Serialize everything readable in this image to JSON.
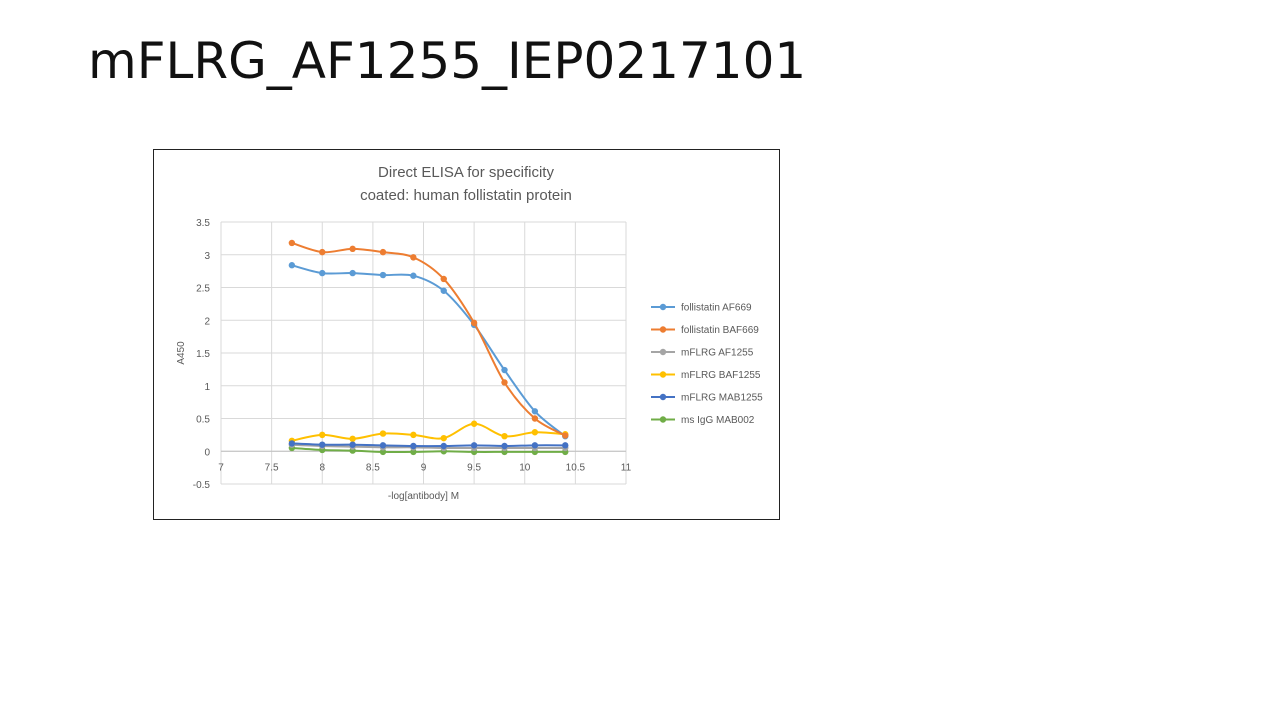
{
  "slide": {
    "title": "mFLRG_AF1255_IEP0217101"
  },
  "chart_data": {
    "type": "line",
    "title": "Direct ELISA for specificity",
    "subtitle": "coated: human follistatin protein",
    "xlabel": "-log[antibody] M",
    "ylabel": "A450",
    "xlim": [
      7,
      11
    ],
    "ylim": [
      -0.5,
      3.5
    ],
    "xticks": [
      7,
      7.5,
      8,
      8.5,
      9,
      9.5,
      10,
      10.5,
      11
    ],
    "yticks": [
      -0.5,
      0,
      0.5,
      1,
      1.5,
      2,
      2.5,
      3,
      3.5
    ],
    "grid": true,
    "legend_position": "right",
    "x": [
      7.7,
      8.0,
      8.3,
      8.6,
      8.9,
      9.2,
      9.5,
      9.8,
      10.1,
      10.4
    ],
    "series": [
      {
        "name": "follistatin AF669",
        "color": "#5B9BD5",
        "values": [
          2.84,
          2.72,
          2.72,
          2.69,
          2.68,
          2.45,
          1.93,
          1.24,
          0.61,
          0.23
        ]
      },
      {
        "name": "follistatin BAF669",
        "color": "#ED7D31",
        "values": [
          3.18,
          3.04,
          3.09,
          3.04,
          2.96,
          2.63,
          1.96,
          1.05,
          0.5,
          0.24
        ]
      },
      {
        "name": "mFLRG AF1255",
        "color": "#A5A5A5",
        "values": [
          0.1,
          0.08,
          0.07,
          0.06,
          0.06,
          0.05,
          0.05,
          0.05,
          0.05,
          0.05
        ]
      },
      {
        "name": "mFLRG BAF1255",
        "color": "#FFC000",
        "values": [
          0.16,
          0.25,
          0.19,
          0.27,
          0.25,
          0.2,
          0.42,
          0.23,
          0.29,
          0.26
        ]
      },
      {
        "name": "mFLRG MAB1255",
        "color": "#4472C4",
        "values": [
          0.12,
          0.1,
          0.1,
          0.09,
          0.08,
          0.08,
          0.09,
          0.08,
          0.09,
          0.09
        ]
      },
      {
        "name": "ms IgG MAB002",
        "color": "#70AD47",
        "values": [
          0.05,
          0.02,
          0.01,
          -0.01,
          -0.01,
          0.0,
          -0.01,
          -0.01,
          -0.01,
          -0.01
        ]
      }
    ]
  }
}
